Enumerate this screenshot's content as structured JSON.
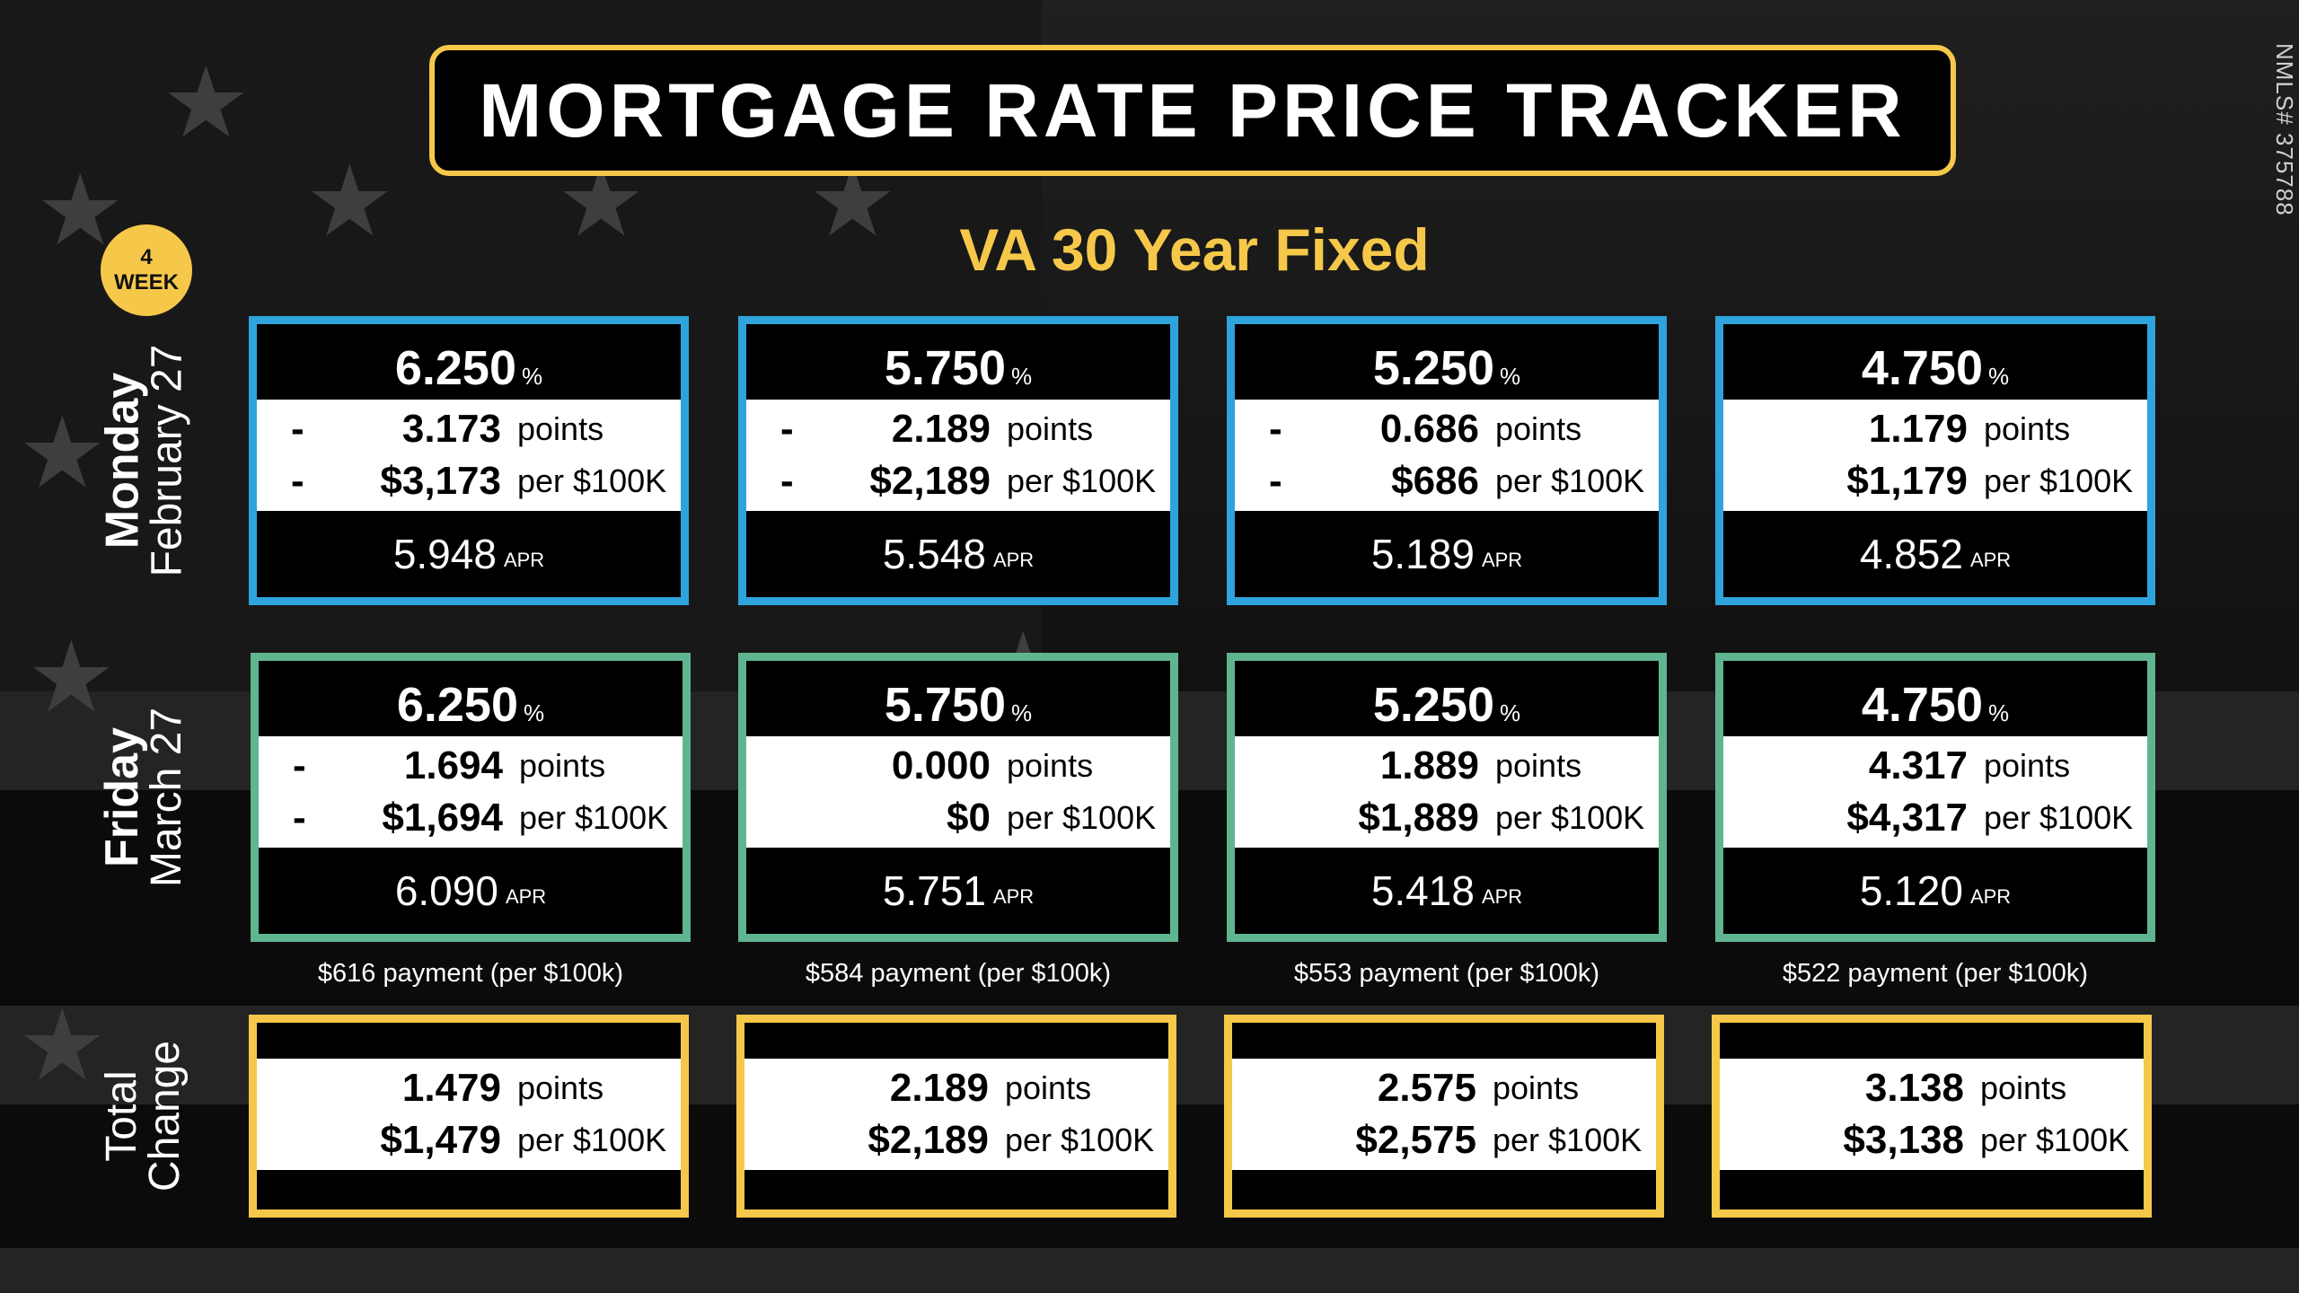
{
  "title": "MORTGAGE RATE PRICE TRACKER",
  "nmls": "NMLS# 375788",
  "badge": {
    "line1": "4",
    "line2": "WEEK"
  },
  "subtitle": "VA 30 Year Fixed",
  "colors": {
    "accent": "#f6c84a",
    "first_row": "#2ea3dc",
    "second_row": "#5fb58f",
    "change_row": "#f6c84a"
  },
  "rows": {
    "first": {
      "day": "Monday",
      "date": "February 27"
    },
    "second": {
      "day": "Friday",
      "date": "March 27"
    },
    "change": {
      "line1": "Total",
      "line2": "Change"
    }
  },
  "labels": {
    "pct": "%",
    "points": "points",
    "per": "per $100K",
    "apr": "APR"
  },
  "first": [
    {
      "rate": "6.250",
      "dash1": "-",
      "points": "3.173",
      "dash2": "-",
      "cost": "$3,173",
      "apr": "5.948"
    },
    {
      "rate": "5.750",
      "dash1": "-",
      "points": "2.189",
      "dash2": "-",
      "cost": "$2,189",
      "apr": "5.548"
    },
    {
      "rate": "5.250",
      "dash1": "-",
      "points": "0.686",
      "dash2": "-",
      "cost": "$686",
      "apr": "5.189"
    },
    {
      "rate": "4.750",
      "dash1": "",
      "points": "1.179",
      "dash2": "",
      "cost": "$1,179",
      "apr": "4.852"
    }
  ],
  "second": [
    {
      "rate": "6.250",
      "dash1": "-",
      "points": "1.694",
      "dash2": "-",
      "cost": "$1,694",
      "apr": "6.090"
    },
    {
      "rate": "5.750",
      "dash1": "",
      "points": "0.000",
      "dash2": "",
      "cost": "$0",
      "apr": "5.751"
    },
    {
      "rate": "5.250",
      "dash1": "",
      "points": "1.889",
      "dash2": "",
      "cost": "$1,889",
      "apr": "5.418"
    },
    {
      "rate": "4.750",
      "dash1": "",
      "points": "4.317",
      "dash2": "",
      "cost": "$4,317",
      "apr": "5.120"
    }
  ],
  "payments": [
    "$616 payment (per $100k)",
    "$584 payment (per $100k)",
    "$553 payment (per $100k)",
    "$522 payment (per $100k)"
  ],
  "change": [
    {
      "points": "1.479",
      "cost": "$1,479"
    },
    {
      "points": "2.189",
      "cost": "$2,189"
    },
    {
      "points": "2.575",
      "cost": "$2,575"
    },
    {
      "points": "3.138",
      "cost": "$3,138"
    }
  ]
}
